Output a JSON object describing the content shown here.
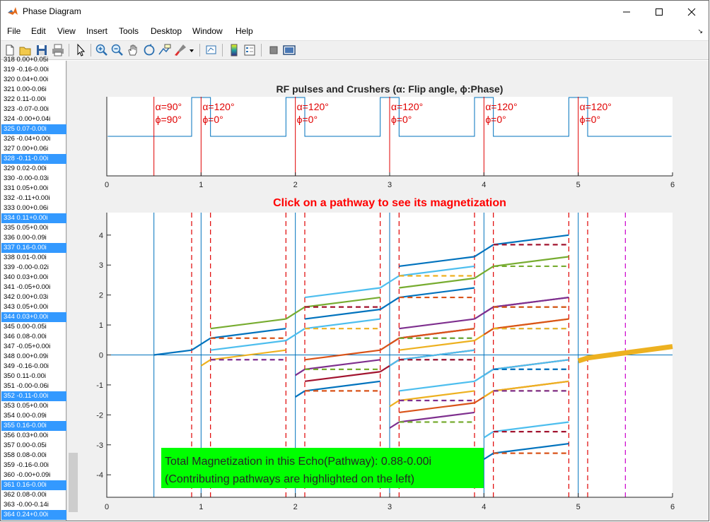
{
  "window": {
    "title": "Phase Diagram",
    "minimize_icon": "minimize-icon",
    "maximize_icon": "maximize-icon",
    "close_icon": "close-icon"
  },
  "menu": [
    "File",
    "Edit",
    "View",
    "Insert",
    "Tools",
    "Desktop",
    "Window",
    "Help"
  ],
  "toolbar": [
    "new-figure-icon",
    "open-file-icon",
    "save-icon",
    "print-icon",
    "pointer-icon",
    "zoom-in-icon",
    "zoom-out-icon",
    "pan-icon",
    "rotate-3d-icon",
    "data-cursor-icon",
    "brush-icon",
    "link-plot-icon",
    "colorbar-icon",
    "legend-icon",
    "hide-plot-tools-icon",
    "show-plot-tools-icon"
  ],
  "list": {
    "items": [
      {
        "text": "318 0.00+0.05i",
        "selected": false
      },
      {
        "text": "319 -0.16-0.00i",
        "selected": false
      },
      {
        "text": "320 0.04+0.00i",
        "selected": false
      },
      {
        "text": "321 0.00-0.06i",
        "selected": false
      },
      {
        "text": "322 0.11-0.00i",
        "selected": false
      },
      {
        "text": "323 -0.07-0.00i",
        "selected": false
      },
      {
        "text": "324 -0.00+0.04i",
        "selected": false
      },
      {
        "text": "325 0.07-0.00i",
        "selected": true
      },
      {
        "text": "326 -0.04+0.00i",
        "selected": false
      },
      {
        "text": "327 0.00+0.06i",
        "selected": false
      },
      {
        "text": "328 -0.11-0.00i",
        "selected": true
      },
      {
        "text": "329 0.02-0.00i",
        "selected": false
      },
      {
        "text": "330 -0.00-0.03i",
        "selected": false
      },
      {
        "text": "331 0.05+0.00i",
        "selected": false
      },
      {
        "text": "332 -0.11+0.00i",
        "selected": false
      },
      {
        "text": "333 0.00+0.06i",
        "selected": false
      },
      {
        "text": "334 0.11+0.00i",
        "selected": true
      },
      {
        "text": "335 0.05+0.00i",
        "selected": false
      },
      {
        "text": "336 0.00-0.09i",
        "selected": false
      },
      {
        "text": "337 0.16-0.00i",
        "selected": true
      },
      {
        "text": "338 0.01-0.00i",
        "selected": false
      },
      {
        "text": "339 -0.00-0.02i",
        "selected": false
      },
      {
        "text": "340 0.03+0.00i",
        "selected": false
      },
      {
        "text": "341 -0.05+0.00i",
        "selected": false
      },
      {
        "text": "342 0.00+0.03i",
        "selected": false
      },
      {
        "text": "343 0.05+0.00i",
        "selected": false
      },
      {
        "text": "344 0.03+0.00i",
        "selected": true
      },
      {
        "text": "345 0.00-0.05i",
        "selected": false
      },
      {
        "text": "346 0.08-0.00i",
        "selected": false
      },
      {
        "text": "347 -0.05+0.00i",
        "selected": false
      },
      {
        "text": "348 0.00+0.09i",
        "selected": false
      },
      {
        "text": "349 -0.16-0.00i",
        "selected": false
      },
      {
        "text": "350 0.11-0.00i",
        "selected": false
      },
      {
        "text": "351 -0.00-0.06i",
        "selected": false
      },
      {
        "text": "352 -0.11-0.00i",
        "selected": true
      },
      {
        "text": "353 0.05+0.00i",
        "selected": false
      },
      {
        "text": "354 0.00-0.09i",
        "selected": false
      },
      {
        "text": "355 0.16-0.00i",
        "selected": true
      },
      {
        "text": "356 0.03+0.00i",
        "selected": false
      },
      {
        "text": "357 0.00-0.05i",
        "selected": false
      },
      {
        "text": "358 0.08-0.00i",
        "selected": false
      },
      {
        "text": "359 -0.16-0.00i",
        "selected": false
      },
      {
        "text": "360 -0.00+0.09i",
        "selected": false
      },
      {
        "text": "361 0.16-0.00i",
        "selected": true
      },
      {
        "text": "362 0.08-0.00i",
        "selected": false
      },
      {
        "text": "363 -0.00-0.14i",
        "selected": false
      },
      {
        "text": "364 0.24+0.00i",
        "selected": true
      }
    ]
  },
  "chart_data": [
    {
      "type": "line",
      "title": "RF pulses and Crushers (α: Flip angle, ϕ:Phase)",
      "xlim": [
        0,
        6
      ],
      "xticks": [
        "0",
        "1",
        "2",
        "3",
        "4",
        "5",
        "6"
      ],
      "pulses": [
        {
          "t": 0.5,
          "alpha": "α=90°",
          "phi": "ϕ=90°"
        },
        {
          "t": 1,
          "alpha": "α=120°",
          "phi": "ϕ=0°"
        },
        {
          "t": 2,
          "alpha": "α=120°",
          "phi": "ϕ=0°"
        },
        {
          "t": 3,
          "alpha": "α=120°",
          "phi": "ϕ=0°"
        },
        {
          "t": 4,
          "alpha": "α=120°",
          "phi": "ϕ=0°"
        },
        {
          "t": 5,
          "alpha": "α=120°",
          "phi": "ϕ=0°"
        }
      ],
      "crushers": [
        [
          0.9,
          1.1
        ],
        [
          1.9,
          2.1
        ],
        [
          2.9,
          3.1
        ],
        [
          3.9,
          4.1
        ],
        [
          4.9,
          5.1
        ]
      ],
      "colors": {
        "pulse": "#e00000",
        "crusher": "#0072bd"
      }
    },
    {
      "type": "line",
      "title": "Click on a pathway to see its magnetization",
      "title_color": "#ff0000",
      "xlim": [
        0,
        6
      ],
      "ylim": [
        -4.75,
        4.75
      ],
      "xticks": [
        "0",
        "1",
        "2",
        "3",
        "4",
        "5",
        "6"
      ],
      "yticks": [
        "-4",
        "-3",
        "-2",
        "-1",
        "0",
        "1",
        "2",
        "3",
        "4"
      ],
      "pulse_times": [
        0.5,
        1,
        2,
        3,
        4,
        5
      ],
      "crusher_edges": [
        0.9,
        1.1,
        1.9,
        2.1,
        2.9,
        3.1,
        3.9,
        4.1,
        4.9,
        5.1
      ],
      "echo_time": 5.5,
      "colors": [
        "#0072bd",
        "#d95319",
        "#edb120",
        "#7e2f8e",
        "#77ac30",
        "#4dbeee",
        "#a2142f"
      ],
      "highlighted_pathway": {
        "x": [
          5,
          5.1,
          6
        ],
        "y": [
          -0.2,
          -0.1,
          0.28
        ],
        "color": "#edb120"
      },
      "annotation": {
        "line1": "Total Magnetization in this Echo(Pathway): 0.88-0.00i",
        "line2": "(Contributing pathways are highlighted on the left)",
        "bg": "#00ff00"
      }
    }
  ]
}
